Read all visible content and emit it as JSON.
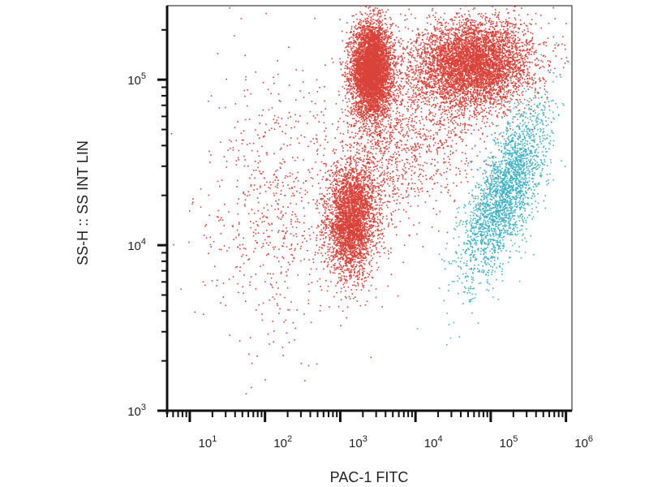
{
  "chart_data": {
    "type": "scatter",
    "title": "",
    "xlabel": "PAC-1 FITC",
    "ylabel": "SS-H :: SS INT LIN",
    "x_scale": "log",
    "y_scale": "log",
    "xlim": [
      5,
      1200000
    ],
    "ylim": [
      1000,
      280000
    ],
    "x_ticks": [
      {
        "value": 10,
        "base": "10",
        "exp": "1"
      },
      {
        "value": 100,
        "base": "10",
        "exp": "2"
      },
      {
        "value": 1000,
        "base": "10",
        "exp": "3"
      },
      {
        "value": 10000,
        "base": "10",
        "exp": "4"
      },
      {
        "value": 100000,
        "base": "10",
        "exp": "5"
      },
      {
        "value": 1000000,
        "base": "10",
        "exp": "6"
      }
    ],
    "y_ticks": [
      {
        "value": 1000,
        "base": "10",
        "exp": "3"
      },
      {
        "value": 10000,
        "base": "10",
        "exp": "4"
      },
      {
        "value": 100000,
        "base": "10",
        "exp": "5"
      }
    ],
    "grid": false,
    "legend": "none",
    "colors": {
      "population_red": "#d9433a",
      "population_cyan": "#3fb2c4",
      "axis": "#111111"
    },
    "populations": [
      {
        "color": "#d9433a",
        "count": 5200,
        "cx": 2600,
        "cy": 115000,
        "sx": 0.13,
        "sy": 0.14,
        "rho": 0.0
      },
      {
        "color": "#d9433a",
        "count": 5200,
        "cx": 60000,
        "cy": 125000,
        "sx": 0.38,
        "sy": 0.13,
        "rho": 0.05
      },
      {
        "color": "#d9433a",
        "count": 3200,
        "cx": 1400,
        "cy": 14000,
        "sx": 0.16,
        "sy": 0.17,
        "rho": 0.1
      },
      {
        "color": "#d9433a",
        "count": 700,
        "cx": 150,
        "cy": 18000,
        "sx": 0.5,
        "sy": 0.38,
        "rho": 0.1
      },
      {
        "color": "#d9433a",
        "count": 1000,
        "cx": 15000,
        "cy": 55000,
        "sx": 0.55,
        "sy": 0.28,
        "rho": 0.3
      },
      {
        "color": "#d9433a",
        "count": 700,
        "cx": 3500,
        "cy": 35000,
        "sx": 0.3,
        "sy": 0.35,
        "rho": 0.4
      },
      {
        "color": "#3fb2c4",
        "count": 2400,
        "cx": 150000,
        "cy": 20000,
        "sx": 0.28,
        "sy": 0.26,
        "rho": 0.7
      }
    ]
  }
}
